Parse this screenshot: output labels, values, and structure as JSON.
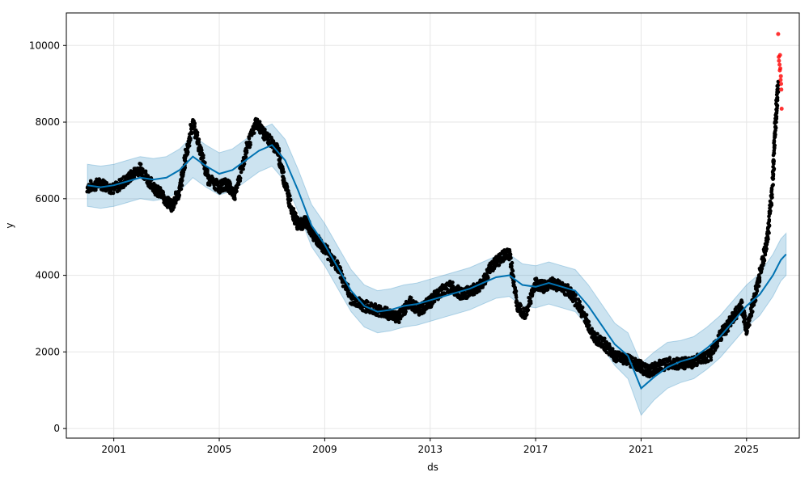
{
  "chart_data": {
    "type": "line",
    "title": "",
    "xlabel": "ds",
    "ylabel": "y",
    "xlim": [
      1999.2,
      2027.0
    ],
    "ylim": [
      -250,
      10850
    ],
    "grid": true,
    "x_ticks": [
      {
        "value": 2001,
        "label": "2001"
      },
      {
        "value": 2005,
        "label": "2005"
      },
      {
        "value": 2009,
        "label": "2009"
      },
      {
        "value": 2013,
        "label": "2013"
      },
      {
        "value": 2017,
        "label": "2017"
      },
      {
        "value": 2021,
        "label": "2021"
      },
      {
        "value": 2025,
        "label": "2025"
      }
    ],
    "y_ticks": [
      {
        "value": 0,
        "label": "0"
      },
      {
        "value": 2000,
        "label": "2000"
      },
      {
        "value": 4000,
        "label": "4000"
      },
      {
        "value": 6000,
        "label": "6000"
      },
      {
        "value": 8000,
        "label": "8000"
      },
      {
        "value": 10000,
        "label": "10000"
      }
    ],
    "colors": {
      "forecast": "#0072B2",
      "band": "#0072B2",
      "actual": "#000000",
      "highlight": "#ff0000",
      "grid": "#e6e6e6"
    },
    "forecast": {
      "x": [
        2000.0,
        2000.5,
        2001.0,
        2001.5,
        2002.0,
        2002.5,
        2003.0,
        2003.5,
        2004.0,
        2004.5,
        2005.0,
        2005.5,
        2006.0,
        2006.5,
        2007.0,
        2007.5,
        2008.0,
        2008.5,
        2009.0,
        2009.5,
        2010.0,
        2010.5,
        2011.0,
        2011.5,
        2012.0,
        2012.5,
        2013.0,
        2013.5,
        2014.0,
        2014.5,
        2015.0,
        2015.5,
        2016.0,
        2016.5,
        2017.0,
        2017.5,
        2018.0,
        2018.5,
        2019.0,
        2019.5,
        2020.0,
        2020.5,
        2021.0,
        2021.5,
        2022.0,
        2022.5,
        2023.0,
        2023.5,
        2024.0,
        2024.5,
        2025.0,
        2025.5,
        2026.0,
        2026.3,
        2026.5
      ],
      "yhat": [
        6350,
        6300,
        6350,
        6450,
        6550,
        6500,
        6550,
        6750,
        7100,
        6850,
        6650,
        6750,
        7000,
        7250,
        7400,
        7000,
        6200,
        5300,
        4800,
        4200,
        3600,
        3200,
        3050,
        3100,
        3200,
        3250,
        3350,
        3450,
        3550,
        3650,
        3800,
        3950,
        4000,
        3750,
        3700,
        3800,
        3700,
        3600,
        3200,
        2700,
        2200,
        1900,
        1050,
        1350,
        1600,
        1750,
        1850,
        2100,
        2400,
        2800,
        3200,
        3500,
        4000,
        4400,
        4550
      ],
      "lower": [
        5800,
        5750,
        5800,
        5900,
        6000,
        5950,
        6000,
        6200,
        6550,
        6300,
        6100,
        6200,
        6450,
        6700,
        6850,
        6450,
        5650,
        4750,
        4250,
        3650,
        3050,
        2650,
        2500,
        2550,
        2650,
        2700,
        2800,
        2900,
        3000,
        3100,
        3250,
        3400,
        3450,
        3200,
        3150,
        3250,
        3150,
        3050,
        2650,
        2150,
        1650,
        1300,
        350,
        750,
        1050,
        1200,
        1300,
        1550,
        1850,
        2250,
        2650,
        2950,
        3450,
        3850,
        4000
      ],
      "upper": [
        6900,
        6850,
        6900,
        7000,
        7100,
        7050,
        7100,
        7300,
        7650,
        7400,
        7200,
        7300,
        7550,
        7800,
        7950,
        7550,
        6750,
        5850,
        5350,
        4750,
        4150,
        3750,
        3600,
        3650,
        3750,
        3800,
        3900,
        4000,
        4100,
        4200,
        4350,
        4500,
        4550,
        4300,
        4250,
        4350,
        4250,
        4150,
        3750,
        3250,
        2750,
        2500,
        1700,
        2000,
        2250,
        2300,
        2400,
        2650,
        2950,
        3350,
        3750,
        4050,
        4550,
        4950,
        5100
      ]
    },
    "actual_trace": {
      "x": [
        2000.0,
        2000.5,
        2001.0,
        2001.5,
        2002.0,
        2002.4,
        2002.8,
        2003.2,
        2003.5,
        2003.7,
        2004.0,
        2004.3,
        2004.6,
        2005.0,
        2005.3,
        2005.6,
        2006.0,
        2006.4,
        2006.8,
        2007.2,
        2007.5,
        2007.8,
        2008.0,
        2008.3,
        2008.6,
        2009.0,
        2009.5,
        2010.0,
        2010.5,
        2011.0,
        2011.4,
        2011.8,
        2012.2,
        2012.6,
        2013.0,
        2013.4,
        2013.8,
        2014.2,
        2014.6,
        2015.0,
        2015.3,
        2015.6,
        2016.0,
        2016.3,
        2016.6,
        2017.0,
        2017.3,
        2017.6,
        2018.0,
        2018.4,
        2018.8,
        2019.2,
        2019.6,
        2020.0,
        2020.4,
        2020.8,
        2021.0,
        2021.3,
        2021.6,
        2022.0,
        2022.4,
        2022.8,
        2023.2,
        2023.6,
        2024.0,
        2024.4,
        2024.8,
        2025.0,
        2025.3,
        2025.6,
        2025.8,
        2026.0,
        2026.1,
        2026.2
      ],
      "y": [
        6300,
        6400,
        6250,
        6500,
        6800,
        6400,
        6100,
        5800,
        6200,
        7000,
        8000,
        7200,
        6500,
        6300,
        6400,
        6100,
        7200,
        8000,
        7600,
        7300,
        6400,
        5600,
        5300,
        5400,
        5000,
        4700,
        4200,
        3400,
        3200,
        3100,
        3000,
        2900,
        3300,
        3100,
        3300,
        3600,
        3700,
        3500,
        3600,
        3800,
        4200,
        4400,
        4600,
        3200,
        3000,
        3800,
        3700,
        3800,
        3700,
        3500,
        3000,
        2400,
        2200,
        1900,
        1800,
        1700,
        1600,
        1500,
        1600,
        1700,
        1700,
        1700,
        1800,
        1900,
        2400,
        2800,
        3200,
        2600,
        3400,
        4300,
        5000,
        6500,
        8000,
        9000
      ],
      "band_half_width": 150
    },
    "highlight_points": {
      "x": [
        2026.2,
        2026.22,
        2026.23,
        2026.25,
        2026.26,
        2026.27,
        2026.28,
        2026.29,
        2026.3,
        2026.31,
        2026.32,
        2026.33
      ],
      "y": [
        10300,
        9700,
        9600,
        9500,
        9350,
        9750,
        9400,
        9100,
        9200,
        9000,
        8850,
        8350
      ]
    }
  }
}
